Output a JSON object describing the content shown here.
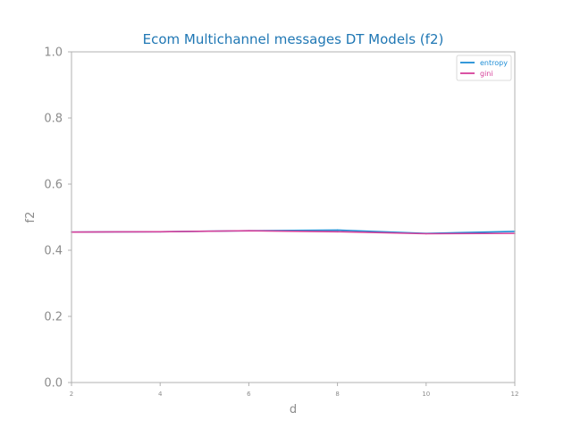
{
  "chart_data": {
    "type": "line",
    "title": "Ecom Multichannel messages DT Models (f2)",
    "xlabel": "d",
    "ylabel": "f2",
    "x": [
      2,
      4,
      6,
      8,
      10,
      12
    ],
    "xticks": [
      "2",
      "4",
      "6",
      "8",
      "10",
      "12"
    ],
    "yticks": [
      "0.0",
      "0.2",
      "0.4",
      "0.6",
      "0.8",
      "1.0"
    ],
    "xlim": [
      2,
      12
    ],
    "ylim": [
      0.0,
      1.0
    ],
    "grid": false,
    "legend_position": "top-right",
    "series": [
      {
        "name": "entropy",
        "color": "#1f8ed6",
        "values": [
          0.455,
          0.456,
          0.459,
          0.461,
          0.451,
          0.457
        ]
      },
      {
        "name": "gini",
        "color": "#d6409a",
        "values": [
          0.455,
          0.456,
          0.459,
          0.456,
          0.45,
          0.451
        ]
      }
    ]
  }
}
